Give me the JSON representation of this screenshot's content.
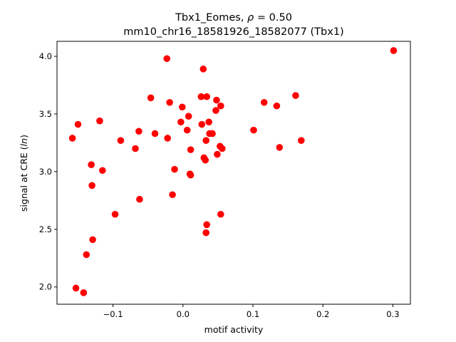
{
  "chart_data": {
    "type": "scatter",
    "title_line1_prefix": "Tbx1_Eomes, ",
    "title_line1_rho": "ρ",
    "title_line1_suffix": " = 0.50",
    "title_line2": "mm10_chr16_18581926_18582077 (Tbx1)",
    "xlabel": "motif activity",
    "ylabel_prefix": "signal at CRE (",
    "ylabel_italic": "ln",
    "ylabel_suffix": ")",
    "xlim": [
      -0.18,
      0.325
    ],
    "ylim": [
      1.85,
      4.13
    ],
    "xticks": [
      -0.1,
      0.0,
      0.1,
      0.2,
      0.3
    ],
    "xtick_labels": [
      "−0.1",
      "0.0",
      "0.1",
      "0.2",
      "0.3"
    ],
    "yticks": [
      2.0,
      2.5,
      3.0,
      3.5,
      4.0
    ],
    "ytick_labels": [
      "2.0",
      "2.5",
      "3.0",
      "3.5",
      "4.0"
    ],
    "grid": false,
    "marker_color": "#ff0000",
    "points": [
      {
        "x": -0.158,
        "y": 3.29
      },
      {
        "x": -0.15,
        "y": 3.41
      },
      {
        "x": -0.153,
        "y": 1.99
      },
      {
        "x": -0.142,
        "y": 1.95
      },
      {
        "x": -0.138,
        "y": 2.28
      },
      {
        "x": -0.131,
        "y": 3.06
      },
      {
        "x": -0.13,
        "y": 2.88
      },
      {
        "x": -0.129,
        "y": 2.41
      },
      {
        "x": -0.119,
        "y": 3.44
      },
      {
        "x": -0.115,
        "y": 3.01
      },
      {
        "x": -0.097,
        "y": 2.63
      },
      {
        "x": -0.089,
        "y": 3.27
      },
      {
        "x": -0.068,
        "y": 3.2
      },
      {
        "x": -0.063,
        "y": 3.35
      },
      {
        "x": -0.062,
        "y": 2.76
      },
      {
        "x": -0.046,
        "y": 3.64
      },
      {
        "x": -0.04,
        "y": 3.33
      },
      {
        "x": -0.023,
        "y": 3.98
      },
      {
        "x": -0.022,
        "y": 3.29
      },
      {
        "x": -0.019,
        "y": 3.6
      },
      {
        "x": -0.015,
        "y": 2.8
      },
      {
        "x": -0.012,
        "y": 3.02
      },
      {
        "x": -0.003,
        "y": 3.43
      },
      {
        "x": -0.001,
        "y": 3.56
      },
      {
        "x": 0.006,
        "y": 3.36
      },
      {
        "x": 0.008,
        "y": 3.48
      },
      {
        "x": 0.01,
        "y": 2.98
      },
      {
        "x": 0.011,
        "y": 2.97
      },
      {
        "x": 0.011,
        "y": 3.19
      },
      {
        "x": 0.026,
        "y": 3.65
      },
      {
        "x": 0.027,
        "y": 3.41
      },
      {
        "x": 0.029,
        "y": 3.89
      },
      {
        "x": 0.03,
        "y": 3.12
      },
      {
        "x": 0.032,
        "y": 3.1
      },
      {
        "x": 0.033,
        "y": 3.27
      },
      {
        "x": 0.033,
        "y": 2.47
      },
      {
        "x": 0.034,
        "y": 2.54
      },
      {
        "x": 0.034,
        "y": 3.65
      },
      {
        "x": 0.037,
        "y": 3.43
      },
      {
        "x": 0.038,
        "y": 3.33
      },
      {
        "x": 0.042,
        "y": 3.33
      },
      {
        "x": 0.047,
        "y": 3.53
      },
      {
        "x": 0.048,
        "y": 3.62
      },
      {
        "x": 0.049,
        "y": 3.15
      },
      {
        "x": 0.053,
        "y": 3.22
      },
      {
        "x": 0.054,
        "y": 3.57
      },
      {
        "x": 0.054,
        "y": 2.63
      },
      {
        "x": 0.056,
        "y": 3.2
      },
      {
        "x": 0.101,
        "y": 3.36
      },
      {
        "x": 0.116,
        "y": 3.6
      },
      {
        "x": 0.134,
        "y": 3.57
      },
      {
        "x": 0.138,
        "y": 3.21
      },
      {
        "x": 0.161,
        "y": 3.66
      },
      {
        "x": 0.169,
        "y": 3.27
      },
      {
        "x": 0.301,
        "y": 4.05
      }
    ]
  }
}
